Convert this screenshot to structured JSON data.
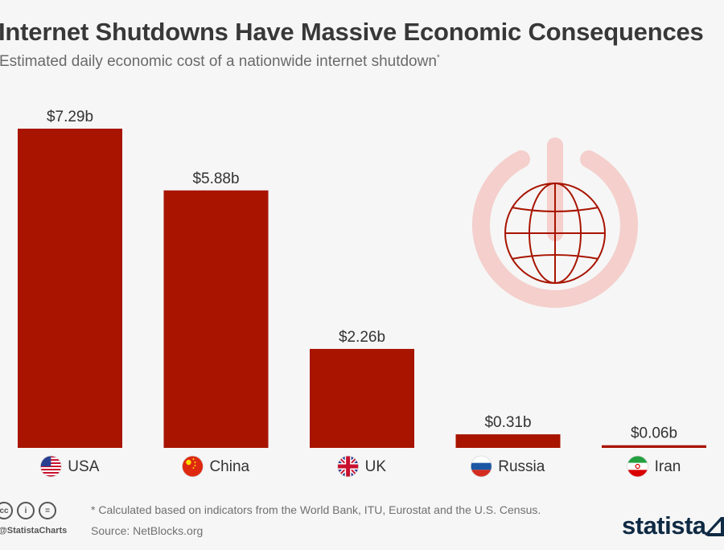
{
  "title": "Internet Shutdowns Have Massive Economic Consequences",
  "subtitle": "Estimated daily economic cost of a nationwide internet shutdown",
  "subtitle_mark": "*",
  "footnote": "* Calculated based on indicators from the World Bank, ITU, Eurostat and the U.S. Census.",
  "source": "Source: NetBlocks.org",
  "handle": "@StatistaCharts",
  "brand": "statista",
  "license_icons": [
    {
      "icon": "creative-commons-icon",
      "glyph": "cc"
    },
    {
      "icon": "attribution-icon",
      "glyph": "i"
    },
    {
      "icon": "no-derivatives-icon",
      "glyph": "="
    }
  ],
  "colors": {
    "bar": "#a81400",
    "decor": "#f4cfcc",
    "globe": "#a81400"
  },
  "chart_data": {
    "type": "bar",
    "categories": [
      "USA",
      "China",
      "UK",
      "Russia",
      "Iran"
    ],
    "values": [
      7.29,
      5.88,
      2.26,
      0.31,
      0.06
    ],
    "value_labels": [
      "$7.29b",
      "$5.88b",
      "$2.26b",
      "$0.31b",
      "$0.06b"
    ],
    "flags": [
      "usa-flag-icon",
      "china-flag-icon",
      "uk-flag-icon",
      "russia-flag-icon",
      "iran-flag-icon"
    ],
    "ylim": [
      0,
      7.29
    ],
    "grid": false
  }
}
